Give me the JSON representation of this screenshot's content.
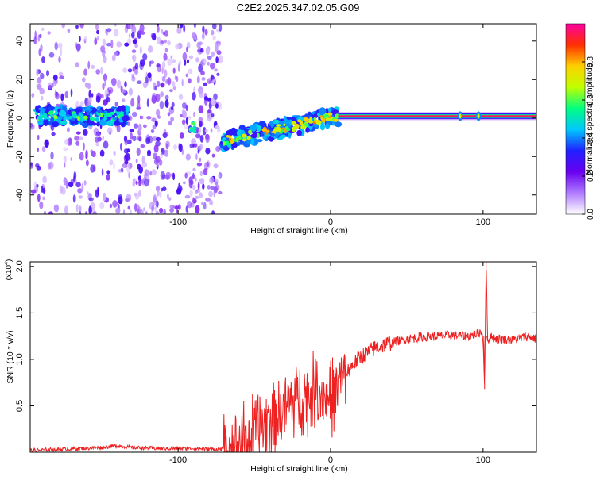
{
  "title": "C2E2.2025.347.02.05.G09",
  "chart_data": [
    {
      "type": "heatmap",
      "description_role": "spectrogram",
      "xlabel": "Height of straight line (km)",
      "ylabel": "Frequency (Hz)",
      "xlim": [
        -197,
        135
      ],
      "ylim": [
        -50,
        49
      ],
      "xticks": [
        -100,
        0,
        100
      ],
      "xtick_labels": [
        "-100",
        "0",
        "100"
      ],
      "yticks": [
        -40,
        -20,
        0,
        20,
        40
      ],
      "ytick_labels": [
        "-40",
        "-20",
        "0",
        "20",
        "40"
      ],
      "colorbar": {
        "label": "Normalized spectral amplitude",
        "range": [
          0,
          1
        ],
        "ticks": [
          0.0,
          0.2,
          0.4,
          0.6,
          0.8
        ],
        "tick_labels": [
          "0.0",
          "0.2",
          "0.4",
          "0.6",
          "0.8"
        ],
        "colormap": [
          "#ffffff",
          "#b07cff",
          "#6a00f0",
          "#2020ff",
          "#00c8ff",
          "#00ff80",
          "#c0ff00",
          "#ffd000",
          "#ff3000",
          "#ff00a0"
        ]
      },
      "features": [
        {
          "x_from": -197,
          "x_to": -72,
          "kind": "scattered-noise",
          "level": 0.15
        },
        {
          "x_from": -193,
          "x_to": -133,
          "kind": "signal-band",
          "center_hz": [
            1,
            1
          ],
          "level": 0.35
        },
        {
          "x_from": -92,
          "x_to": -88,
          "kind": "signal-blob",
          "center_hz": [
            -5,
            -5
          ],
          "level": 0.45
        },
        {
          "x_from": -71,
          "x_to": 5,
          "kind": "signal-band",
          "center_hz": [
            -12,
            1
          ],
          "level": 0.55
        },
        {
          "x_from": 5,
          "x_to": 135,
          "kind": "carrier-line",
          "center_hz": [
            1,
            1
          ],
          "level": 0.95
        }
      ],
      "grid": false,
      "legend": "colorbar-right"
    },
    {
      "type": "line",
      "xlabel": "Height of straight line (km)",
      "ylabel": "SNR (10 * v/v)",
      "y_multiplier_label": "(x10",
      "y_multiplier_exp": "4",
      "xlim": [
        -197,
        135
      ],
      "ylim": [
        0,
        2.05
      ],
      "xticks": [
        -100,
        0,
        100
      ],
      "xtick_labels": [
        "-100",
        "0",
        "100"
      ],
      "yticks": [
        0.5,
        1.0,
        1.5,
        2.0
      ],
      "ytick_labels": [
        "0.5",
        "1.0",
        "1.5",
        "2.0"
      ],
      "series": [
        {
          "color": "#ee2020",
          "x": [
            -197,
            -180,
            -165,
            -150,
            -140,
            -130,
            -110,
            -90,
            -75,
            -68,
            -62,
            -55,
            -50,
            -45,
            -40,
            -35,
            -30,
            -25,
            -20,
            -15,
            -10,
            -5,
            0,
            5,
            10,
            15,
            20,
            25,
            30,
            40,
            50,
            60,
            70,
            80,
            90,
            95,
            99,
            100,
            101,
            102,
            103,
            105,
            110,
            120,
            130,
            135
          ],
          "y": [
            0.02,
            0.03,
            0.04,
            0.05,
            0.07,
            0.05,
            0.04,
            0.04,
            0.03,
            0.04,
            0.08,
            0.15,
            0.22,
            0.3,
            0.38,
            0.42,
            0.48,
            0.55,
            0.62,
            0.58,
            0.7,
            0.6,
            0.58,
            0.72,
            0.85,
            0.95,
            1.03,
            1.08,
            1.13,
            1.18,
            1.22,
            1.24,
            1.25,
            1.26,
            1.25,
            1.27,
            1.3,
            1.22,
            0.68,
            2.05,
            1.2,
            1.24,
            1.22,
            1.21,
            1.25,
            1.22
          ]
        }
      ],
      "grid": false
    }
  ]
}
